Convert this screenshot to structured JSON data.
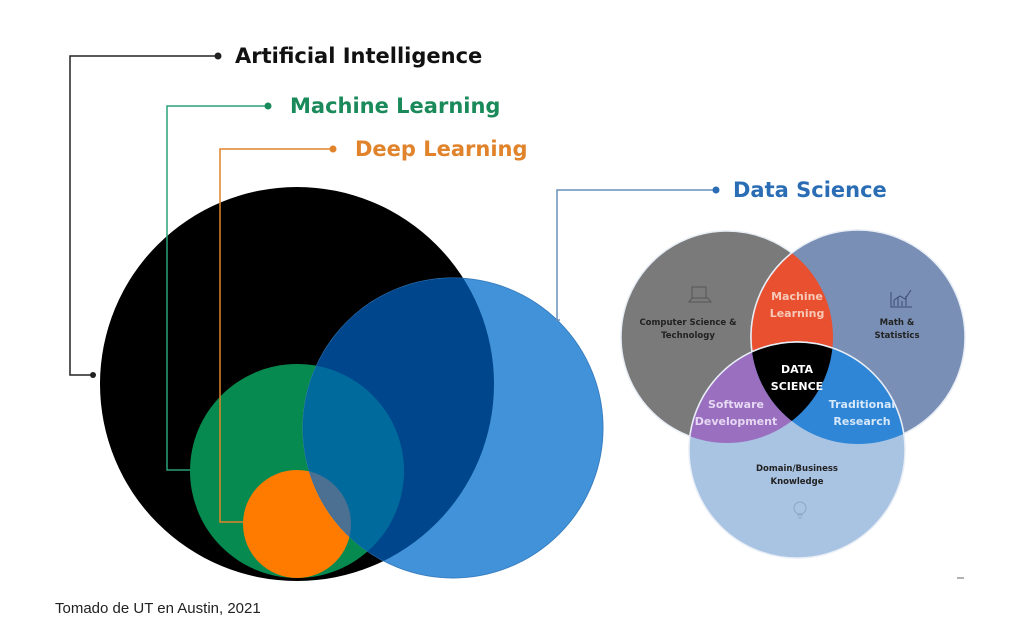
{
  "labels": {
    "ai": "Artificial Intelligence",
    "ml": "Machine Learning",
    "dl": "Deep Learning",
    "ds": "Data Science"
  },
  "venn": {
    "cs": [
      "Computer Science &",
      "Technology"
    ],
    "math": [
      "Math &",
      "Statistics"
    ],
    "domain": [
      "Domain/Business",
      "Knowledge"
    ],
    "ml": [
      "Machine",
      "Learning"
    ],
    "ds": [
      "DATA",
      "SCIENCE"
    ],
    "sw": [
      "Software",
      "Development"
    ],
    "tr": [
      "Traditional",
      "Research"
    ]
  },
  "caption": "Tomado de UT en Austin, 2021",
  "colors": {
    "ai": "#000000",
    "ml": "#078a4f",
    "dl": "#ff7b00",
    "ds": "#4192d9",
    "ml_label": "#1a8a5a",
    "dl_label": "#e0832a",
    "ds_label": "#2a6db5",
    "venn_cs": "#7a7a7a",
    "venn_math": "#7a8fb5",
    "venn_domain": "#a9c3e3",
    "venn_ml": "#e8502f",
    "venn_sw": "#9a6fc0",
    "venn_tr": "#2f86d6"
  }
}
